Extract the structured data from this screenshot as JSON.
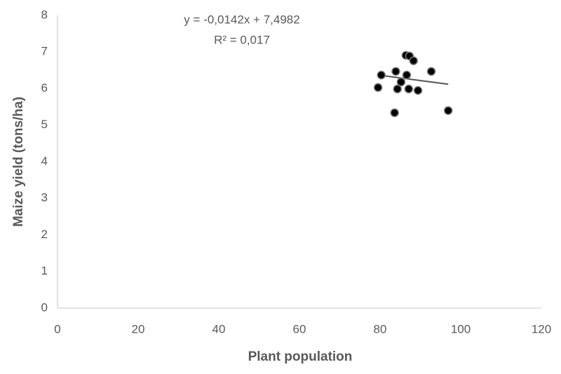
{
  "chart_data": {
    "type": "scatter",
    "annotations": [
      "y = -0,0142x + 7,4982",
      "R² = 0,017"
    ],
    "x_label": "Plant population",
    "y_label": "Maize yield (tons/ha)",
    "xlim": [
      0,
      120
    ],
    "xticks": [
      0,
      20,
      40,
      60,
      80,
      100,
      120
    ],
    "ylim": [
      0,
      8
    ],
    "yticks": [
      0,
      1,
      2,
      3,
      4,
      5,
      6,
      7,
      8
    ],
    "color": "#000000",
    "grid": false,
    "x": [
      79.5,
      80.3,
      83.9,
      84.3,
      83.6,
      85.2,
      86.4,
      87.3,
      88.3,
      86.6,
      87.1,
      89.4,
      92.7,
      96.9
    ],
    "values": [
      6.03,
      6.37,
      6.47,
      5.99,
      5.34,
      6.18,
      6.91,
      6.89,
      6.76,
      6.37,
      5.99,
      5.95,
      6.47,
      5.4
    ],
    "trendline": {
      "color": "#595959",
      "x": [
        79.5,
        96.9
      ],
      "y": [
        6.37,
        6.12
      ]
    }
  }
}
